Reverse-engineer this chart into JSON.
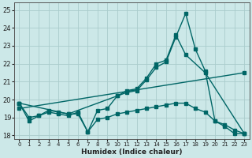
{
  "xlabel": "Humidex (Indice chaleur)",
  "bg_color": "#cce8e8",
  "grid_color": "#aacccc",
  "line_color": "#006666",
  "xlim": [
    -0.5,
    23.5
  ],
  "ylim": [
    17.8,
    25.4
  ],
  "yticks": [
    18,
    19,
    20,
    21,
    22,
    23,
    24,
    25
  ],
  "xticks": [
    0,
    1,
    2,
    3,
    4,
    5,
    6,
    7,
    8,
    9,
    10,
    11,
    12,
    13,
    14,
    15,
    16,
    17,
    18,
    19,
    20,
    21,
    22,
    23
  ],
  "series1_x": [
    0,
    1,
    2,
    3,
    4,
    5,
    6,
    7,
    8,
    9,
    10,
    11,
    12,
    13,
    14,
    15,
    16,
    17,
    18,
    19,
    20,
    21,
    22,
    23
  ],
  "series1_y": [
    19.8,
    18.8,
    19.1,
    19.4,
    19.3,
    19.2,
    19.2,
    18.2,
    19.4,
    19.5,
    20.2,
    20.4,
    20.5,
    21.1,
    21.8,
    22.1,
    23.5,
    24.8,
    22.8,
    21.6,
    18.8,
    18.5,
    18.1,
    18.1
  ],
  "series2_x": [
    0,
    5,
    10,
    11,
    12,
    13,
    14,
    15,
    16,
    17,
    19,
    23
  ],
  "series2_y": [
    19.8,
    19.2,
    20.2,
    20.5,
    20.6,
    21.2,
    22.0,
    22.2,
    23.6,
    22.5,
    21.5,
    18.1
  ],
  "series3_x": [
    0,
    1,
    2,
    3,
    4,
    5,
    6,
    7,
    8,
    9,
    10,
    11,
    12,
    13,
    14,
    15,
    16,
    17,
    18,
    19,
    20,
    21,
    22,
    23
  ],
  "series3_y": [
    19.8,
    19.0,
    19.1,
    19.3,
    19.2,
    19.1,
    19.3,
    18.2,
    18.9,
    19.0,
    19.2,
    19.3,
    19.4,
    19.5,
    19.6,
    19.7,
    19.8,
    19.8,
    19.5,
    19.3,
    18.8,
    18.6,
    18.3,
    18.1
  ],
  "trend_x": [
    0,
    23
  ],
  "trend_y": [
    19.5,
    21.5
  ],
  "markersize": 2.5,
  "linewidth": 1.0
}
